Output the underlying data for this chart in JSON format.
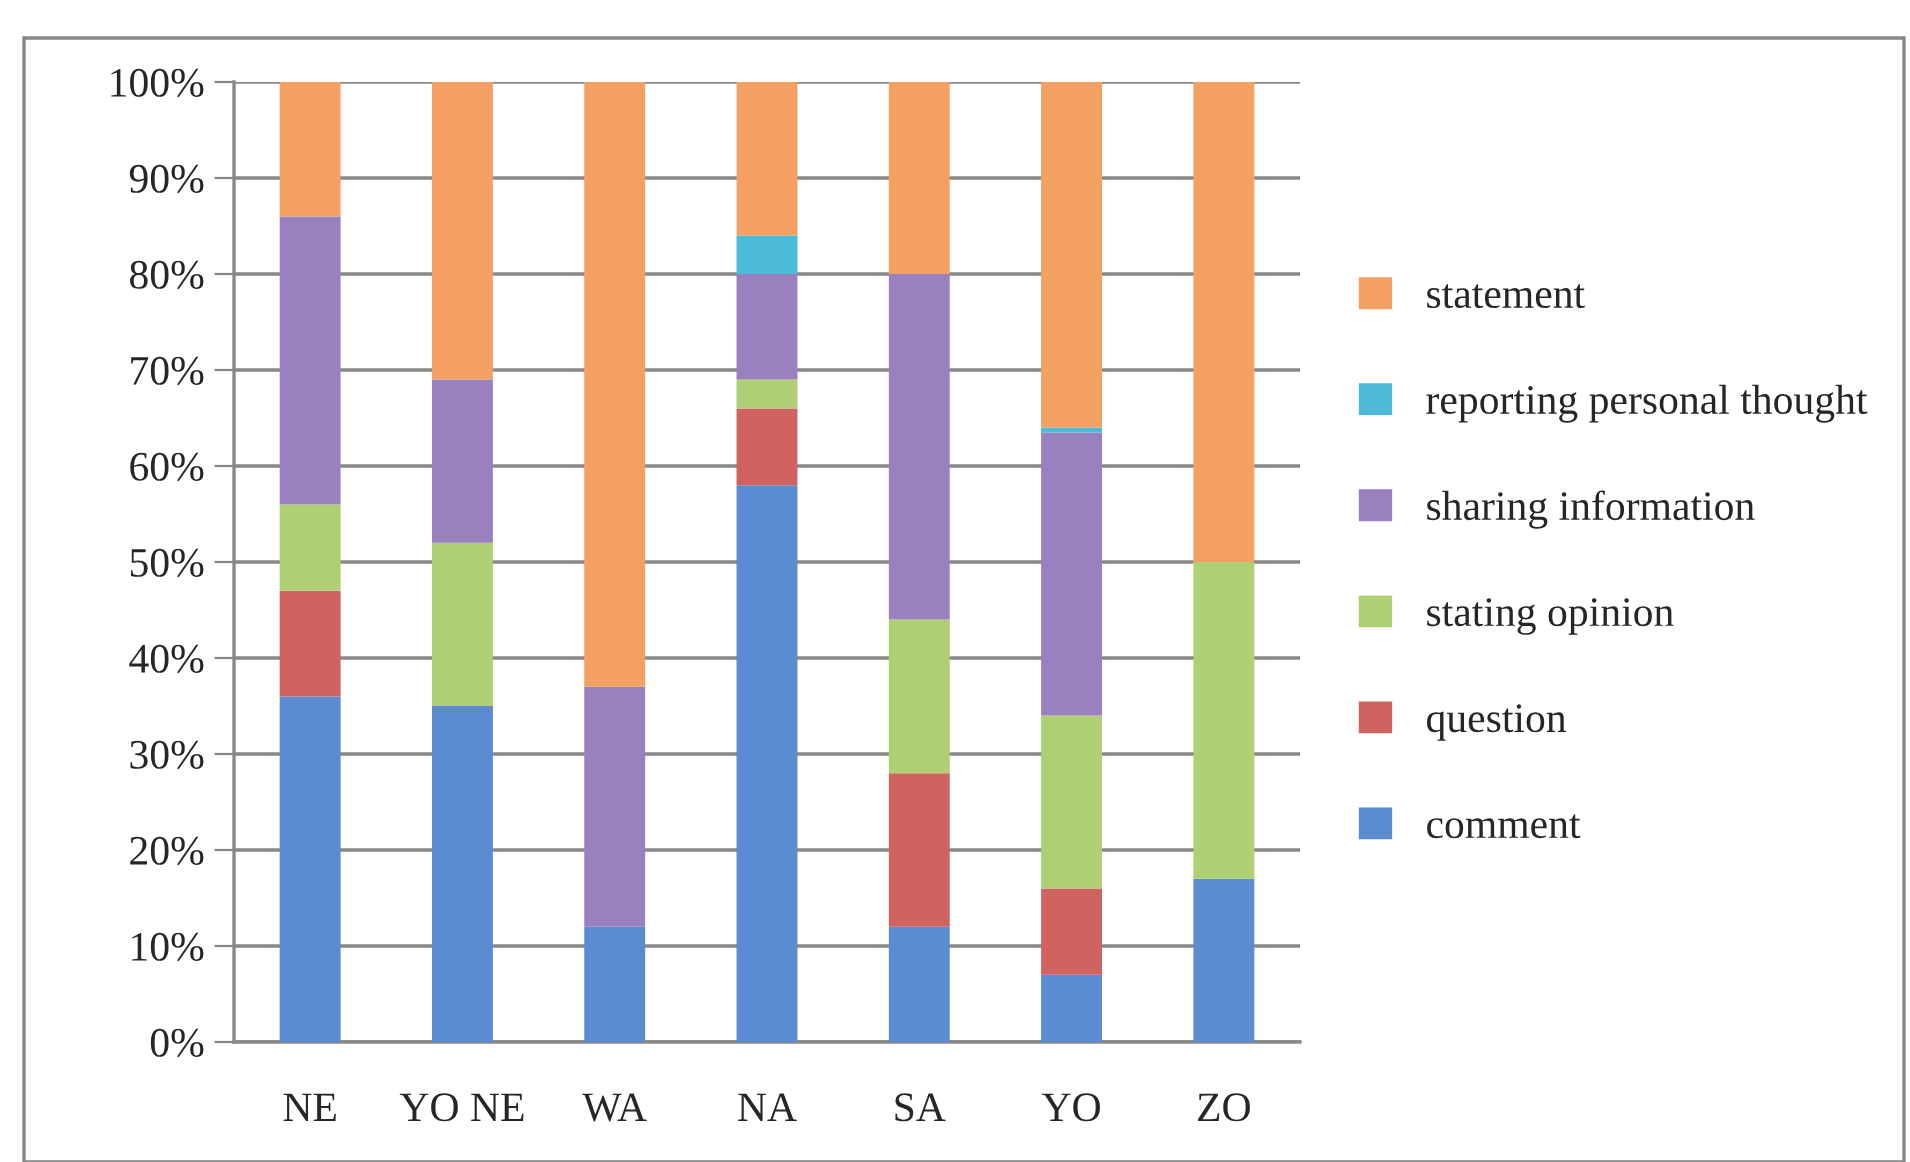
{
  "chart_data": {
    "type": "bar",
    "stacked": true,
    "categories": [
      "NE",
      "YO NE",
      "WA",
      "NA",
      "SA",
      "YO",
      "ZO"
    ],
    "series": [
      {
        "name": "comment",
        "color": "#5b8bd0",
        "values": [
          36,
          35,
          12,
          58,
          12,
          7,
          17
        ]
      },
      {
        "name": "question",
        "color": "#d0625f",
        "values": [
          11,
          0,
          0,
          8,
          16,
          9,
          0
        ]
      },
      {
        "name": "stating opinion",
        "color": "#aecf74",
        "values": [
          9,
          17,
          0,
          3,
          16,
          18,
          33
        ]
      },
      {
        "name": "sharing information",
        "color": "#9a80bf",
        "values": [
          30,
          17,
          25,
          11,
          36,
          29.5,
          0
        ]
      },
      {
        "name": "reporting personal thought",
        "color": "#4bbbd9",
        "values": [
          0,
          0,
          0,
          4,
          0,
          0.5,
          0
        ]
      },
      {
        "name": "statement",
        "color": "#f5a063",
        "values": [
          14,
          31,
          63,
          16,
          20,
          36,
          50
        ]
      }
    ],
    "ylim": [
      0,
      100
    ],
    "yticks": [
      {
        "value": 0,
        "label": "0%"
      },
      {
        "value": 10,
        "label": "10%"
      },
      {
        "value": 20,
        "label": "20%"
      },
      {
        "value": 30,
        "label": "30%"
      },
      {
        "value": 40,
        "label": "40%"
      },
      {
        "value": 50,
        "label": "50%"
      },
      {
        "value": 60,
        "label": "60%"
      },
      {
        "value": 70,
        "label": "70%"
      },
      {
        "value": 80,
        "label": "80%"
      },
      {
        "value": 90,
        "label": "90%"
      },
      {
        "value": 100,
        "label": "100%"
      }
    ],
    "grid": "y",
    "legend": "right"
  }
}
